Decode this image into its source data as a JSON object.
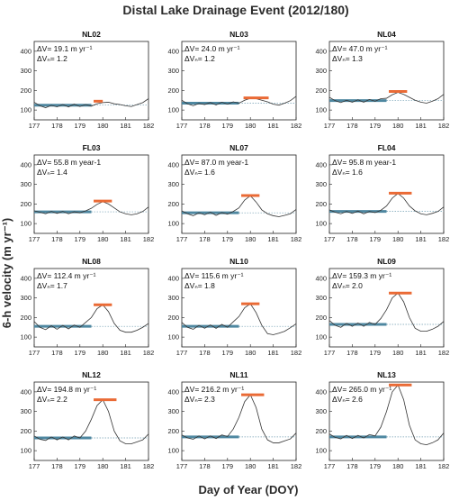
{
  "figure": {
    "title": "Distal Lake Drainage Event (2012/180)",
    "ylabel": "6-h velocity (m yr⁻¹)",
    "xlabel": "Day of Year (DOY)",
    "colors": {
      "baseline": "#4e87a0",
      "peak": "#ea6a35",
      "curve": "#333333",
      "frame": "#222222"
    }
  },
  "chart_data": [
    {
      "type": "line",
      "title": "NL02",
      "annotation": [
        "ΔV= 19.1 m yr⁻¹",
        "ΔVₙ= 1.2"
      ],
      "x_ticks": [
        177,
        178,
        179,
        180,
        181,
        182
      ],
      "y_ticks": [
        100,
        200,
        300,
        400
      ],
      "xlim": [
        177,
        182
      ],
      "ylim": [
        50,
        450
      ],
      "baseline": {
        "x": [
          177,
          179.5
        ],
        "y": 125
      },
      "peak_marker": {
        "x": [
          179.6,
          180
        ],
        "y": 145
      },
      "x": [
        177,
        177.25,
        177.5,
        177.75,
        178,
        178.25,
        178.5,
        178.75,
        179,
        179.25,
        179.5,
        179.75,
        180,
        180.25,
        180.5,
        180.75,
        181,
        181.25,
        181.5,
        181.75,
        182
      ],
      "y": [
        140,
        122,
        112,
        124,
        116,
        128,
        116,
        130,
        118,
        128,
        120,
        132,
        138,
        140,
        132,
        128,
        122,
        118,
        128,
        138,
        158
      ]
    },
    {
      "type": "line",
      "title": "NL03",
      "annotation": [
        "ΔV= 24.0 m yr⁻¹",
        "ΔVₙ= 1.2"
      ],
      "x_ticks": [
        177,
        178,
        179,
        180,
        181,
        182
      ],
      "y_ticks": [
        100,
        200,
        300,
        400
      ],
      "xlim": [
        177,
        182
      ],
      "ylim": [
        50,
        450
      ],
      "baseline": {
        "x": [
          177,
          179.5
        ],
        "y": 135
      },
      "peak_marker": {
        "x": [
          179.7,
          180.8
        ],
        "y": 162
      },
      "x": [
        177,
        177.25,
        177.5,
        177.75,
        178,
        178.25,
        178.5,
        178.75,
        179,
        179.25,
        179.5,
        179.75,
        180,
        180.25,
        180.5,
        180.75,
        181,
        181.25,
        181.5,
        181.75,
        182
      ],
      "y": [
        150,
        132,
        122,
        134,
        128,
        138,
        126,
        140,
        130,
        142,
        135,
        150,
        160,
        158,
        150,
        142,
        130,
        125,
        135,
        148,
        170
      ]
    },
    {
      "type": "line",
      "title": "NL04",
      "annotation": [
        "ΔV= 47.0 m yr⁻¹",
        "ΔVₙ= 1.3"
      ],
      "x_ticks": [
        177,
        178,
        179,
        180,
        181,
        182
      ],
      "y_ticks": [
        100,
        200,
        300,
        400
      ],
      "xlim": [
        177,
        182
      ],
      "ylim": [
        50,
        450
      ],
      "baseline": {
        "x": [
          177,
          179.5
        ],
        "y": 148
      },
      "peak_marker": {
        "x": [
          179.6,
          180.4
        ],
        "y": 195
      },
      "x": [
        177,
        177.25,
        177.5,
        177.75,
        178,
        178.25,
        178.5,
        178.75,
        179,
        179.25,
        179.5,
        179.75,
        180,
        180.25,
        180.5,
        180.75,
        181,
        181.25,
        181.5,
        181.75,
        182
      ],
      "y": [
        165,
        148,
        138,
        150,
        140,
        152,
        140,
        154,
        145,
        158,
        160,
        178,
        190,
        180,
        165,
        150,
        140,
        135,
        145,
        158,
        180
      ]
    },
    {
      "type": "line",
      "title": "FL03",
      "annotation": [
        "ΔV= 55.8 m year-1",
        "ΔVₙ= 1.4"
      ],
      "x_ticks": [
        177,
        178,
        179,
        180,
        181,
        182
      ],
      "y_ticks": [
        100,
        200,
        300,
        400
      ],
      "xlim": [
        177,
        182
      ],
      "ylim": [
        50,
        450
      ],
      "baseline": {
        "x": [
          177,
          179.5
        ],
        "y": 160
      },
      "peak_marker": {
        "x": [
          179.6,
          180.4
        ],
        "y": 215
      },
      "x": [
        177,
        177.25,
        177.5,
        177.75,
        178,
        178.25,
        178.5,
        178.75,
        179,
        179.25,
        179.5,
        179.75,
        180,
        180.25,
        180.5,
        180.75,
        181,
        181.25,
        181.5,
        181.75,
        182
      ],
      "y": [
        165,
        158,
        150,
        162,
        152,
        162,
        150,
        160,
        155,
        165,
        178,
        198,
        212,
        200,
        180,
        160,
        150,
        145,
        150,
        162,
        185
      ]
    },
    {
      "type": "line",
      "title": "NL07",
      "annotation": [
        "ΔV= 87.0 m year-1",
        "ΔVₙ= 1.6"
      ],
      "x_ticks": [
        177,
        178,
        179,
        180,
        181,
        182
      ],
      "y_ticks": [
        100,
        200,
        300,
        400
      ],
      "xlim": [
        177,
        182
      ],
      "ylim": [
        50,
        450
      ],
      "baseline": {
        "x": [
          177,
          179.5
        ],
        "y": 155
      },
      "peak_marker": {
        "x": [
          179.6,
          180.4
        ],
        "y": 243
      },
      "x": [
        177,
        177.25,
        177.5,
        177.75,
        178,
        178.25,
        178.5,
        178.75,
        179,
        179.25,
        179.5,
        179.75,
        180,
        180.25,
        180.5,
        180.75,
        181,
        181.25,
        181.5,
        181.75,
        182
      ],
      "y": [
        165,
        150,
        140,
        155,
        145,
        158,
        142,
        156,
        148,
        162,
        180,
        220,
        242,
        210,
        170,
        150,
        140,
        135,
        142,
        150,
        172
      ]
    },
    {
      "type": "line",
      "title": "FL04",
      "annotation": [
        "ΔV= 95.8 m year-1",
        "ΔVₙ= 1.6"
      ],
      "x_ticks": [
        177,
        178,
        179,
        180,
        181,
        182
      ],
      "y_ticks": [
        100,
        200,
        300,
        400
      ],
      "xlim": [
        177,
        182
      ],
      "ylim": [
        50,
        450
      ],
      "baseline": {
        "x": [
          177,
          179.5
        ],
        "y": 162
      },
      "peak_marker": {
        "x": [
          179.6,
          180.6
        ],
        "y": 255
      },
      "x": [
        177,
        177.25,
        177.5,
        177.75,
        178,
        178.25,
        178.5,
        178.75,
        179,
        179.25,
        179.5,
        179.75,
        180,
        180.25,
        180.5,
        180.75,
        181,
        181.25,
        181.5,
        181.75,
        182
      ],
      "y": [
        170,
        158,
        150,
        162,
        152,
        164,
        150,
        162,
        156,
        168,
        190,
        230,
        254,
        230,
        190,
        165,
        150,
        145,
        152,
        162,
        185
      ]
    },
    {
      "type": "line",
      "title": "NL08",
      "annotation": [
        "ΔV= 112.4 m yr⁻¹",
        "ΔVₙ= 1.7"
      ],
      "x_ticks": [
        177,
        178,
        179,
        180,
        181,
        182
      ],
      "y_ticks": [
        100,
        200,
        300,
        400
      ],
      "xlim": [
        177,
        182
      ],
      "ylim": [
        50,
        450
      ],
      "baseline": {
        "x": [
          177,
          179.5
        ],
        "y": 155
      },
      "peak_marker": {
        "x": [
          179.6,
          180.4
        ],
        "y": 265
      },
      "x": [
        177,
        177.25,
        177.5,
        177.75,
        178,
        178.25,
        178.5,
        178.75,
        179,
        179.25,
        179.5,
        179.75,
        180,
        180.25,
        180.5,
        180.75,
        181,
        181.25,
        181.5,
        181.75,
        182
      ],
      "y": [
        180,
        150,
        138,
        158,
        140,
        160,
        142,
        162,
        150,
        175,
        200,
        245,
        265,
        230,
        170,
        135,
        125,
        125,
        135,
        150,
        170
      ]
    },
    {
      "type": "line",
      "title": "NL10",
      "annotation": [
        "ΔV= 115.6 m yr⁻¹",
        "ΔVₙ= 1.8"
      ],
      "x_ticks": [
        177,
        178,
        179,
        180,
        181,
        182
      ],
      "y_ticks": [
        100,
        200,
        300,
        400
      ],
      "xlim": [
        177,
        182
      ],
      "ylim": [
        50,
        450
      ],
      "baseline": {
        "x": [
          177,
          179.5
        ],
        "y": 155
      },
      "peak_marker": {
        "x": [
          179.6,
          180.4
        ],
        "y": 270
      },
      "x": [
        177,
        177.25,
        177.5,
        177.75,
        178,
        178.25,
        178.5,
        178.75,
        179,
        179.25,
        179.5,
        179.75,
        180,
        180.25,
        180.5,
        180.75,
        181,
        181.25,
        181.5,
        181.75,
        182
      ],
      "y": [
        175,
        150,
        140,
        160,
        145,
        162,
        145,
        165,
        150,
        178,
        205,
        250,
        270,
        225,
        160,
        118,
        112,
        120,
        130,
        148,
        168
      ]
    },
    {
      "type": "line",
      "title": "NL09",
      "annotation": [
        "ΔV= 159.3 m yr⁻¹",
        "ΔVₙ= 2.0"
      ],
      "x_ticks": [
        177,
        178,
        179,
        180,
        181,
        182
      ],
      "y_ticks": [
        100,
        200,
        300,
        400
      ],
      "xlim": [
        177,
        182
      ],
      "ylim": [
        50,
        450
      ],
      "baseline": {
        "x": [
          177,
          179.5
        ],
        "y": 165
      },
      "peak_marker": {
        "x": [
          179.6,
          180.6
        ],
        "y": 325
      },
      "x": [
        177,
        177.25,
        177.5,
        177.75,
        178,
        178.25,
        178.5,
        178.75,
        179,
        179.25,
        179.5,
        179.75,
        180,
        180.25,
        180.5,
        180.75,
        181,
        181.25,
        181.5,
        181.75,
        182
      ],
      "y": [
        185,
        160,
        150,
        170,
        155,
        172,
        155,
        175,
        165,
        195,
        240,
        300,
        325,
        280,
        200,
        145,
        130,
        130,
        140,
        155,
        180
      ]
    },
    {
      "type": "line",
      "title": "NL12",
      "annotation": [
        "ΔV= 194.8 m yr⁻¹",
        "ΔVₙ= 2.2"
      ],
      "x_ticks": [
        177,
        178,
        179,
        180,
        181,
        182
      ],
      "y_ticks": [
        100,
        200,
        300,
        400
      ],
      "xlim": [
        177,
        182
      ],
      "ylim": [
        50,
        450
      ],
      "baseline": {
        "x": [
          177,
          179.5
        ],
        "y": 165
      },
      "peak_marker": {
        "x": [
          179.6,
          180.6
        ],
        "y": 360
      },
      "x": [
        177,
        177.25,
        177.5,
        177.75,
        178,
        178.25,
        178.5,
        178.75,
        179,
        179.25,
        179.5,
        179.75,
        180,
        180.25,
        180.5,
        180.75,
        181,
        181.25,
        181.5,
        181.75,
        182
      ],
      "y": [
        175,
        158,
        152,
        170,
        155,
        170,
        155,
        175,
        165,
        200,
        260,
        330,
        360,
        300,
        200,
        150,
        135,
        135,
        145,
        155,
        185
      ]
    },
    {
      "type": "line",
      "title": "NL11",
      "annotation": [
        "ΔV= 216.2 m yr⁻¹",
        "ΔVₙ= 2.3"
      ],
      "x_ticks": [
        177,
        178,
        179,
        180,
        181,
        182
      ],
      "y_ticks": [
        100,
        200,
        300,
        400
      ],
      "xlim": [
        177,
        182
      ],
      "ylim": [
        50,
        450
      ],
      "baseline": {
        "x": [
          177,
          179.5
        ],
        "y": 170
      },
      "peak_marker": {
        "x": [
          179.6,
          180.6
        ],
        "y": 385
      },
      "x": [
        177,
        177.25,
        177.5,
        177.75,
        178,
        178.25,
        178.5,
        178.75,
        179,
        179.25,
        179.5,
        179.75,
        180,
        180.25,
        180.5,
        180.75,
        181,
        181.25,
        181.5,
        181.75,
        182
      ],
      "y": [
        180,
        165,
        158,
        175,
        160,
        175,
        162,
        180,
        172,
        210,
        270,
        350,
        385,
        320,
        210,
        155,
        140,
        140,
        150,
        160,
        190
      ]
    },
    {
      "type": "line",
      "title": "NL13",
      "annotation": [
        "ΔV= 265.0 m yr⁻¹",
        "ΔVₙ= 2.6"
      ],
      "x_ticks": [
        177,
        178,
        179,
        180,
        181,
        182
      ],
      "y_ticks": [
        100,
        200,
        300,
        400
      ],
      "xlim": [
        177,
        182
      ],
      "ylim": [
        50,
        450
      ],
      "baseline": {
        "x": [
          177,
          179.5
        ],
        "y": 170
      },
      "peak_marker": {
        "x": [
          179.6,
          180.6
        ],
        "y": 435
      },
      "x": [
        177,
        177.25,
        177.5,
        177.75,
        178,
        178.25,
        178.5,
        178.75,
        179,
        179.25,
        179.5,
        179.75,
        180,
        180.25,
        180.5,
        180.75,
        181,
        181.25,
        181.5,
        181.75,
        182
      ],
      "y": [
        185,
        168,
        160,
        178,
        162,
        178,
        165,
        182,
        175,
        220,
        300,
        400,
        435,
        360,
        230,
        155,
        135,
        130,
        140,
        155,
        190
      ]
    }
  ]
}
